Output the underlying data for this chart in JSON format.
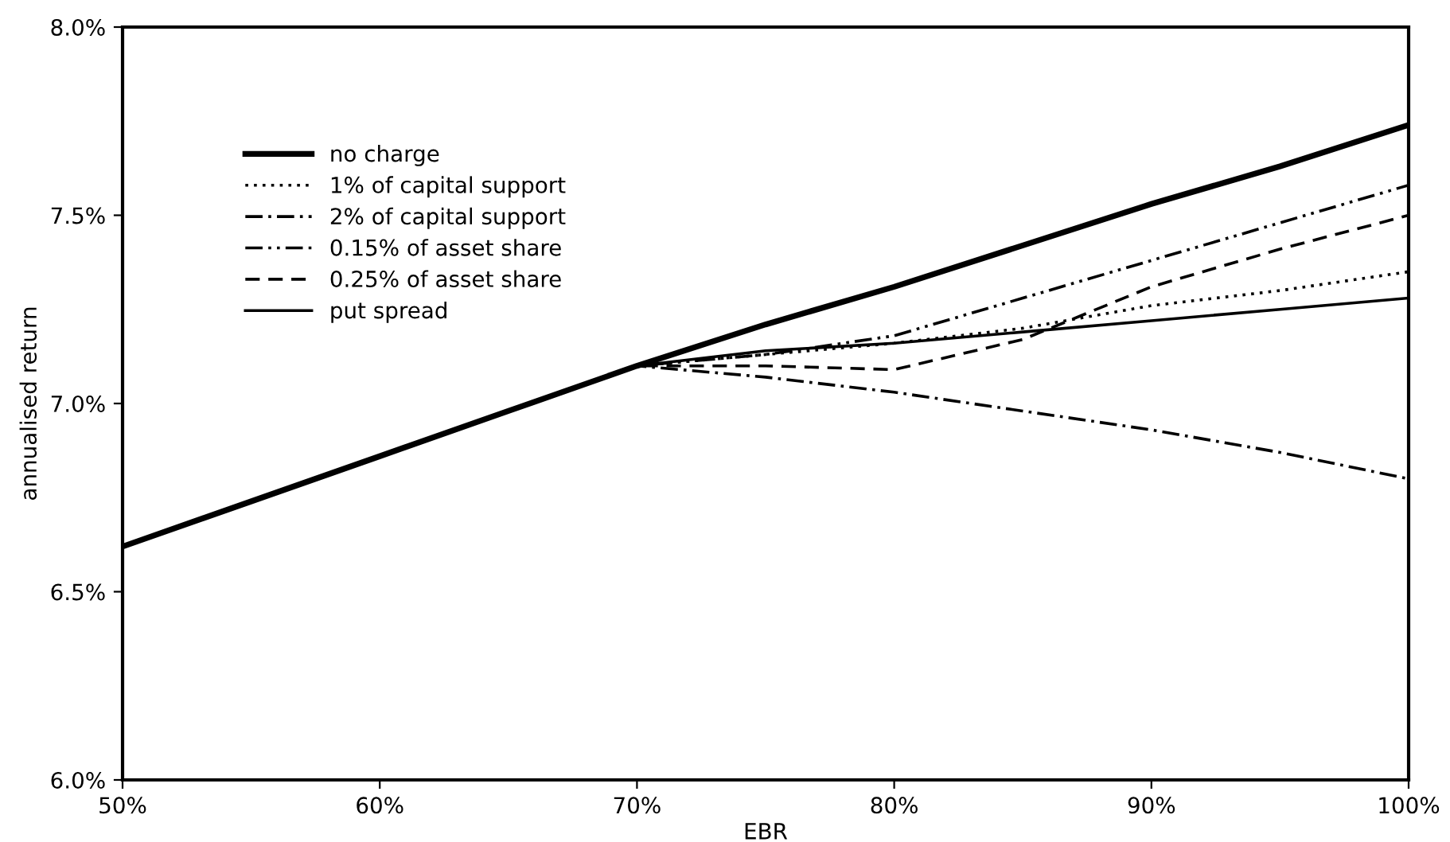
{
  "chart_data": {
    "type": "line",
    "xlabel": "EBR",
    "ylabel": "annualised return",
    "x": [
      50,
      55,
      60,
      65,
      70,
      75,
      80,
      85,
      90,
      95,
      100
    ],
    "xlim": [
      50,
      100
    ],
    "xticks": [
      {
        "value": 50,
        "label": "50%"
      },
      {
        "value": 60,
        "label": "60%"
      },
      {
        "value": 70,
        "label": "70%"
      },
      {
        "value": 80,
        "label": "80%"
      },
      {
        "value": 90,
        "label": "90%"
      },
      {
        "value": 100,
        "label": "100%"
      }
    ],
    "ylim": [
      6.0,
      8.0
    ],
    "yticks": [
      {
        "value": 6.0,
        "label": "6.0%"
      },
      {
        "value": 6.5,
        "label": "6.5%"
      },
      {
        "value": 7.0,
        "label": "7.0%"
      },
      {
        "value": 7.5,
        "label": "7.5%"
      },
      {
        "value": 8.0,
        "label": "8.0%"
      }
    ],
    "grid": false,
    "legend": "top left",
    "marker": "none",
    "series": [
      {
        "name": "no charge",
        "color": "#000000",
        "line_style": "solid",
        "values": [
          6.62,
          6.74,
          6.86,
          6.98,
          7.1,
          7.21,
          7.31,
          7.42,
          7.53,
          7.63,
          7.74
        ]
      },
      {
        "name": "1% of capital support",
        "color": "#000000",
        "line_style": "dotted",
        "values": [
          6.62,
          6.74,
          6.86,
          6.98,
          7.1,
          7.13,
          7.16,
          7.2,
          7.26,
          7.3,
          7.35
        ]
      },
      {
        "name": "2% of capital support",
        "color": "#000000",
        "line_style": "dashdot",
        "values": [
          6.62,
          6.74,
          6.86,
          6.98,
          7.1,
          7.07,
          7.03,
          6.98,
          6.93,
          6.87,
          6.8
        ]
      },
      {
        "name": "0.15% of asset share",
        "color": "#000000",
        "line_style": "dashdotdot",
        "values": [
          6.62,
          6.74,
          6.86,
          6.98,
          7.1,
          7.13,
          7.18,
          7.28,
          7.38,
          7.48,
          7.58
        ]
      },
      {
        "name": "0.25% of asset share",
        "color": "#000000",
        "line_style": "dashed",
        "values": [
          6.62,
          6.74,
          6.86,
          6.98,
          7.1,
          7.1,
          7.09,
          7.17,
          7.31,
          7.41,
          7.5
        ]
      },
      {
        "name": "put spread",
        "color": "#000000",
        "line_style": "solid",
        "values": [
          6.62,
          6.74,
          6.86,
          6.98,
          7.1,
          7.14,
          7.16,
          7.19,
          7.22,
          7.25,
          7.28
        ]
      }
    ]
  }
}
